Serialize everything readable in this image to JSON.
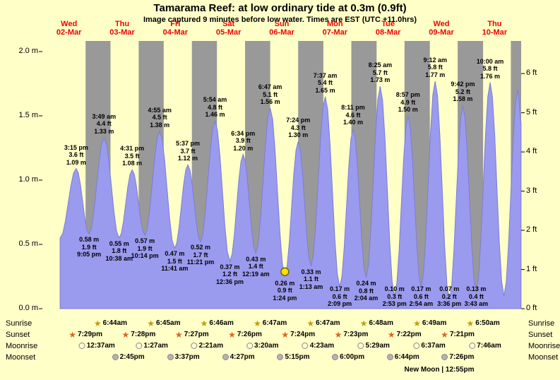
{
  "title": "Tamarama Reef: at low ordinary tide at 0.3m (0.9ft)",
  "subtitle": "Image captured 9 minutes before low water. Times are EST (UTC +11.0hrs)",
  "colors": {
    "background": "#ffffc8",
    "night_band": "#999999",
    "tide_fill": "#9a9aee",
    "tide_edge": "#7d7dd8",
    "day_label": "#ee0000",
    "marker_fill": "#ffdf00",
    "marker_edge": "#6b6b00"
  },
  "chart_data": {
    "type": "area",
    "series_name": "tide height",
    "units": {
      "primary": "m",
      "secondary": "ft"
    },
    "ylim_m": [
      0,
      2.08
    ],
    "days": [
      {
        "weekday": "Wed",
        "date": "02-Mar"
      },
      {
        "weekday": "Thu",
        "date": "03-Mar"
      },
      {
        "weekday": "Fri",
        "date": "04-Mar"
      },
      {
        "weekday": "Sat",
        "date": "05-Mar"
      },
      {
        "weekday": "Sun",
        "date": "06-Mar"
      },
      {
        "weekday": "Mon",
        "date": "07-Mar"
      },
      {
        "weekday": "Tue",
        "date": "08-Mar"
      },
      {
        "weekday": "Wed",
        "date": "09-Mar"
      },
      {
        "weekday": "Thu",
        "date": "10-Mar"
      }
    ],
    "y_axis_left": [
      {
        "label": "0.0 m",
        "m": 0
      },
      {
        "label": "0.5 m",
        "m": 0.5
      },
      {
        "label": "1.0 m",
        "m": 1
      },
      {
        "label": "1.5 m",
        "m": 1.5
      },
      {
        "label": "2.0 m",
        "m": 2
      }
    ],
    "y_axis_right": [
      {
        "label": "0 ft",
        "ft": 0
      },
      {
        "label": "1 ft",
        "ft": 1
      },
      {
        "label": "2 ft",
        "ft": 2
      },
      {
        "label": "3 ft",
        "ft": 3
      },
      {
        "label": "4 ft",
        "ft": 4
      },
      {
        "label": "5 ft",
        "ft": 5
      },
      {
        "label": "6 ft",
        "ft": 6
      }
    ],
    "tide_events": [
      {
        "day": 0,
        "time": "08:00",
        "m": 0.55,
        "type": "edge"
      },
      {
        "day": 0,
        "time": "15:15",
        "m": 1.09,
        "type": "high",
        "lines": [
          "3:15 pm",
          "3.6 ft",
          "1.09 m"
        ]
      },
      {
        "day": 0,
        "time": "21:05",
        "m": 0.58,
        "type": "low",
        "lines": [
          "0.58 m",
          "1.9 ft",
          "9:05 pm"
        ]
      },
      {
        "day": 1,
        "time": "03:49",
        "m": 1.33,
        "type": "high",
        "lines": [
          "3:49 am",
          "4.4 ft",
          "1.33 m"
        ]
      },
      {
        "day": 1,
        "time": "10:38",
        "m": 0.55,
        "type": "low",
        "lines": [
          "0.55 m",
          "1.8 ft",
          "10:38 am"
        ]
      },
      {
        "day": 1,
        "time": "16:31",
        "m": 1.08,
        "type": "high",
        "lines": [
          "4:31 pm",
          "3.5 ft",
          "1.08 m"
        ]
      },
      {
        "day": 1,
        "time": "22:14",
        "m": 0.57,
        "type": "low",
        "lines": [
          "0.57 m",
          "1.9 ft",
          "10:14 pm"
        ]
      },
      {
        "day": 2,
        "time": "04:55",
        "m": 1.38,
        "type": "high",
        "lines": [
          "4:55 am",
          "4.5 ft",
          "1.38 m"
        ]
      },
      {
        "day": 2,
        "time": "11:41",
        "m": 0.47,
        "type": "low",
        "lines": [
          "0.47 m",
          "1.5 ft",
          "11:41 am"
        ]
      },
      {
        "day": 2,
        "time": "17:37",
        "m": 1.12,
        "type": "high",
        "lines": [
          "5:37 pm",
          "3.7 ft",
          "1.12 m"
        ]
      },
      {
        "day": 2,
        "time": "23:21",
        "m": 0.52,
        "type": "low",
        "lines": [
          "0.52 m",
          "1.7 ft",
          "11:21 pm"
        ]
      },
      {
        "day": 3,
        "time": "05:54",
        "m": 1.46,
        "type": "high",
        "lines": [
          "5:54 am",
          "4.8 ft",
          "1.46 m"
        ]
      },
      {
        "day": 3,
        "time": "12:36",
        "m": 0.37,
        "type": "low",
        "lines": [
          "0.37 m",
          "1.2 ft",
          "12:36 pm"
        ]
      },
      {
        "day": 3,
        "time": "18:34",
        "m": 1.2,
        "type": "high",
        "lines": [
          "6:34 pm",
          "3.9 ft",
          "1.20 m"
        ]
      },
      {
        "day": 4,
        "time": "00:19",
        "m": 0.43,
        "type": "low",
        "lines": [
          "0.43 m",
          "1.4 ft",
          "12:19 am"
        ]
      },
      {
        "day": 4,
        "time": "06:47",
        "m": 1.56,
        "type": "high",
        "lines": [
          "6:47 am",
          "5.1 ft",
          "1.56 m"
        ]
      },
      {
        "day": 4,
        "time": "13:24",
        "m": 0.26,
        "type": "low",
        "marker": true,
        "lines": [
          "0.26 m",
          "0.9 ft",
          "1:24 pm"
        ]
      },
      {
        "day": 4,
        "time": "19:24",
        "m": 1.3,
        "type": "high",
        "lines": [
          "7:24 pm",
          "4.3 ft",
          "1.30 m"
        ]
      },
      {
        "day": 5,
        "time": "01:13",
        "m": 0.33,
        "type": "low",
        "lines": [
          "0.33 m",
          "1.1 ft",
          "1:13 am"
        ]
      },
      {
        "day": 5,
        "time": "07:37",
        "m": 1.65,
        "type": "high",
        "lines": [
          "7:37 am",
          "5.4 ft",
          "1.65 m"
        ]
      },
      {
        "day": 5,
        "time": "14:09",
        "m": 0.17,
        "type": "low",
        "lines": [
          "0.17 m",
          "0.6 ft",
          "2:09 pm"
        ]
      },
      {
        "day": 5,
        "time": "20:11",
        "m": 1.4,
        "type": "high",
        "lines": [
          "8:11 pm",
          "4.6 ft",
          "1.40 m"
        ]
      },
      {
        "day": 6,
        "time": "02:04",
        "m": 0.24,
        "type": "low",
        "lines": [
          "0.24 m",
          "0.8 ft",
          "2:04 am"
        ]
      },
      {
        "day": 6,
        "time": "08:25",
        "m": 1.73,
        "type": "high",
        "lines": [
          "8:25 am",
          "5.7 ft",
          "1.73 m"
        ]
      },
      {
        "day": 6,
        "time": "14:53",
        "m": 0.1,
        "type": "low",
        "lines": [
          "0.10 m",
          "0.3 ft",
          "2:53 pm"
        ]
      },
      {
        "day": 6,
        "time": "20:57",
        "m": 1.5,
        "type": "high",
        "lines": [
          "8:57 pm",
          "4.9 ft",
          "1.50 m"
        ]
      },
      {
        "day": 7,
        "time": "02:54",
        "m": 0.17,
        "type": "low",
        "lines": [
          "0.17 m",
          "0.6 ft",
          "2:54 am"
        ]
      },
      {
        "day": 7,
        "time": "09:12",
        "m": 1.77,
        "type": "high",
        "lines": [
          "9:12 am",
          "5.8 ft",
          "1.77 m"
        ]
      },
      {
        "day": 7,
        "time": "15:36",
        "m": 0.07,
        "type": "low",
        "lines": [
          "0.07 m",
          "0.2 ft",
          "3:36 pm"
        ]
      },
      {
        "day": 7,
        "time": "21:42",
        "m": 1.58,
        "type": "high",
        "lines": [
          "9:42 pm",
          "5.2 ft",
          "1.58 m"
        ]
      },
      {
        "day": 8,
        "time": "03:43",
        "m": 0.13,
        "type": "low",
        "lines": [
          "0.13 m",
          "0.4 ft",
          "3:43 am"
        ]
      },
      {
        "day": 8,
        "time": "10:00",
        "m": 1.76,
        "type": "high",
        "lines": [
          "10:00 am",
          "5.8 ft",
          "1.76 m"
        ]
      },
      {
        "day": 8,
        "time": "16:14",
        "m": 0.1,
        "type": "edge"
      },
      {
        "day": 8,
        "time": "22:26",
        "m": 1.7,
        "type": "edge"
      },
      {
        "day": 8,
        "time": "23:59",
        "m": 1.45,
        "type": "edge"
      }
    ],
    "final_night_band_start": {
      "day": 8,
      "time": "19:20"
    }
  },
  "astro": {
    "rows": [
      {
        "name": "Sunrise",
        "icon": "sunrise-star-icon",
        "icon_color": "#c99a00",
        "entries": [
          {
            "day": 1,
            "time": "6:44am"
          },
          {
            "day": 2,
            "time": "6:45am"
          },
          {
            "day": 3,
            "time": "6:46am"
          },
          {
            "day": 4,
            "time": "6:47am"
          },
          {
            "day": 5,
            "time": "6:47am"
          },
          {
            "day": 6,
            "time": "6:48am"
          },
          {
            "day": 7,
            "time": "6:49am"
          },
          {
            "day": 8,
            "time": "6:50am"
          }
        ]
      },
      {
        "name": "Sunset",
        "icon": "sunset-star-icon",
        "icon_color": "#e0611c",
        "entries": [
          {
            "day": 0,
            "time": "7:29pm"
          },
          {
            "day": 1,
            "time": "7:28pm"
          },
          {
            "day": 2,
            "time": "7:27pm"
          },
          {
            "day": 3,
            "time": "7:26pm"
          },
          {
            "day": 4,
            "time": "7:24pm"
          },
          {
            "day": 5,
            "time": "7:23pm"
          },
          {
            "day": 6,
            "time": "7:22pm"
          },
          {
            "day": 7,
            "time": "7:21pm"
          }
        ]
      },
      {
        "name": "Moonrise",
        "icon": "moonrise-moon-icon",
        "icon_color": "#ffffd6",
        "entries": [
          {
            "day": 1,
            "time": "12:37am"
          },
          {
            "day": 2,
            "time": "1:27am"
          },
          {
            "day": 3,
            "time": "2:21am"
          },
          {
            "day": 4,
            "time": "3:20am"
          },
          {
            "day": 5,
            "time": "4:23am"
          },
          {
            "day": 6,
            "time": "5:29am"
          },
          {
            "day": 7,
            "time": "6:37am"
          },
          {
            "day": 8,
            "time": "7:46am"
          }
        ]
      },
      {
        "name": "Moonset",
        "icon": "moonset-moon-icon",
        "icon_color": "#b3b3b3",
        "entries": [
          {
            "day": 1,
            "time": "2:45pm"
          },
          {
            "day": 2,
            "time": "3:37pm"
          },
          {
            "day": 3,
            "time": "4:27pm"
          },
          {
            "day": 4,
            "time": "5:15pm"
          },
          {
            "day": 5,
            "time": "6:00pm"
          },
          {
            "day": 6,
            "time": "6:44pm"
          },
          {
            "day": 7,
            "time": "7:26pm"
          }
        ]
      }
    ],
    "new_moon_note": "New Moon | 12:55pm"
  }
}
